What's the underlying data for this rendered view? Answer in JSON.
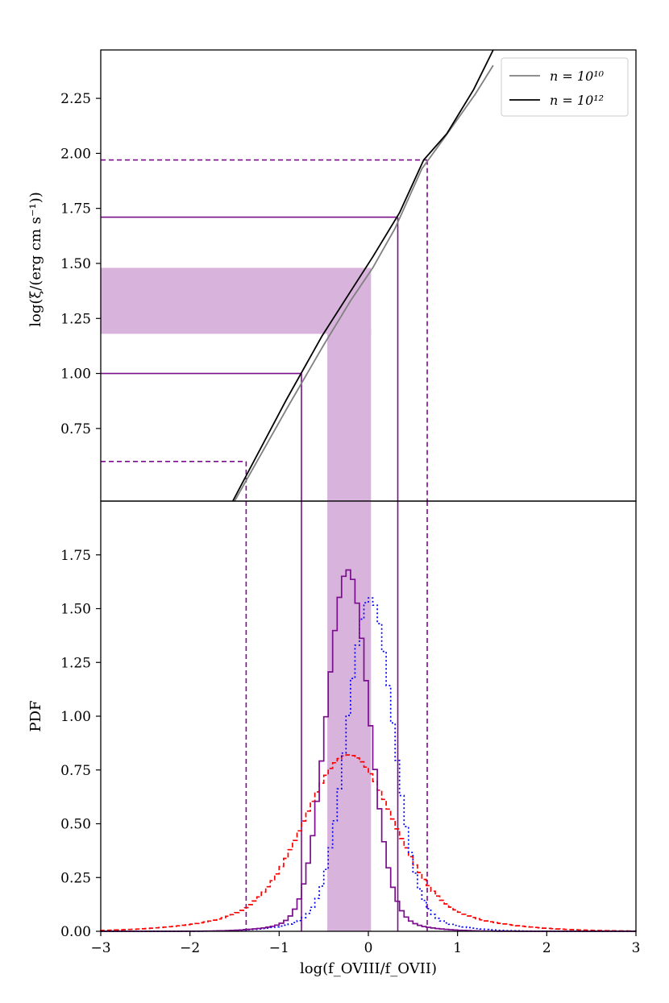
{
  "chart_data": [
    {
      "panel": "top",
      "type": "line",
      "ylabel": "log(ξ/(erg cm s⁻¹))",
      "xlim": [
        -3,
        3
      ],
      "ylim": [
        0.42,
        2.47
      ],
      "yticks": [
        "0.75",
        "1.00",
        "1.25",
        "1.50",
        "1.75",
        "2.00",
        "2.25"
      ],
      "ytick_values": [
        0.75,
        1.0,
        1.25,
        1.5,
        1.75,
        2.0,
        2.25
      ],
      "legend": {
        "placement": "top-right",
        "entries": [
          "n = 10¹⁰",
          "n = 10¹²"
        ]
      },
      "series": [
        {
          "name": "n = 10¹⁰",
          "color": "#808080",
          "x": [
            -1.5,
            -0.9,
            -0.5,
            -0.2,
            0.05,
            0.3,
            0.6,
            0.85,
            1.2,
            1.4
          ],
          "y": [
            0.42,
            0.85,
            1.13,
            1.33,
            1.48,
            1.66,
            1.93,
            2.07,
            2.27,
            2.4
          ]
        },
        {
          "name": "n = 10¹²",
          "color": "#000000",
          "x": [
            -1.52,
            -0.92,
            -0.52,
            -0.22,
            0.05,
            0.35,
            0.62,
            0.88,
            1.18,
            1.4
          ],
          "y": [
            0.42,
            0.88,
            1.17,
            1.36,
            1.53,
            1.73,
            1.97,
            2.09,
            2.29,
            2.47
          ]
        }
      ],
      "reference_lines": {
        "dashed_levels": [
          0.6,
          1.97
        ],
        "solid_levels": [
          1.0,
          1.71
        ],
        "dashed_x": [
          -1.37,
          0.66
        ],
        "solid_x": [
          -0.75,
          0.33
        ]
      },
      "shaded_band": {
        "y": [
          1.18,
          1.48
        ],
        "x_end": 0.03
      }
    },
    {
      "panel": "bottom",
      "type": "area",
      "xlabel": "log(f_OVIII/f_OVII)",
      "ylabel": "PDF",
      "xlim": [
        -3,
        3
      ],
      "ylim": [
        0,
        2.0
      ],
      "xticks": [
        "−3",
        "−2",
        "−1",
        "0",
        "1",
        "2",
        "3"
      ],
      "xtick_values": [
        -3,
        -2,
        -1,
        0,
        1,
        2,
        3
      ],
      "yticks": [
        "0.00",
        "0.25",
        "0.50",
        "0.75",
        "1.00",
        "1.25",
        "1.50",
        "1.75"
      ],
      "ytick_values": [
        0,
        0.25,
        0.5,
        0.75,
        1.0,
        1.25,
        1.5,
        1.75
      ],
      "shaded_band": {
        "x": [
          -0.46,
          0.03
        ]
      },
      "series": [
        {
          "color": "#ff0000",
          "style": "dashed",
          "shape": "gaussian",
          "center": -0.22,
          "sigma": 0.48,
          "peak": 0.82,
          "tail_fraction": 0.16,
          "tail_sigma": 1.05
        },
        {
          "color": "#0000ff",
          "style": "dotted",
          "shape": "gaussian",
          "center": 0.02,
          "sigma": 0.255,
          "peak": 1.55,
          "tail_fraction": 0.06,
          "tail_sigma": 0.6
        },
        {
          "color": "#7b0d8e",
          "style": "solid",
          "shape": "gaussian",
          "center": -0.23,
          "sigma": 0.235,
          "peak": 1.68,
          "tail_fraction": 0.04,
          "tail_sigma": 0.55
        }
      ],
      "reference_lines": {
        "dashed_x": [
          -1.37,
          0.66
        ],
        "solid_x": [
          -0.75,
          0.33
        ]
      }
    }
  ],
  "colors": {
    "purple": "#7b0d8e",
    "band": "#d8b4dc",
    "gray": "#808080"
  }
}
